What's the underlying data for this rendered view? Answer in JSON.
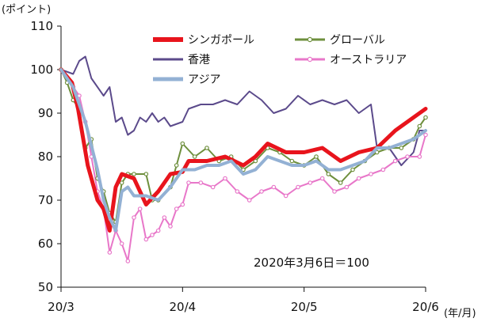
{
  "chart_data": {
    "type": "line",
    "y_unit_label": "(ポイント)",
    "x_unit_label": "(年/月)",
    "annotation": "2020年3月6日＝100",
    "ylim": [
      50,
      110
    ],
    "yticks": [
      50,
      60,
      70,
      80,
      90,
      100,
      110
    ],
    "xticks": [
      {
        "label": "20/3",
        "x": 0
      },
      {
        "label": "20/4",
        "x": 1
      },
      {
        "label": "20/5",
        "x": 2
      },
      {
        "label": "20/6",
        "x": 3
      }
    ],
    "xlim": [
      0,
      3
    ],
    "grid": false,
    "legend_position": "top",
    "series": [
      {
        "name": "シンガポール",
        "color": "#e8141c",
        "marker": "none",
        "width": 5,
        "points": [
          [
            0,
            100
          ],
          [
            0.09,
            97
          ],
          [
            0.14,
            91
          ],
          [
            0.22,
            78
          ],
          [
            0.3,
            70
          ],
          [
            0.35,
            68
          ],
          [
            0.4,
            63
          ],
          [
            0.45,
            73
          ],
          [
            0.5,
            76
          ],
          [
            0.6,
            75
          ],
          [
            0.7,
            69
          ],
          [
            0.8,
            72
          ],
          [
            0.9,
            76
          ],
          [
            1.0,
            76.5
          ],
          [
            1.05,
            79
          ],
          [
            1.2,
            79
          ],
          [
            1.35,
            80
          ],
          [
            1.5,
            78
          ],
          [
            1.6,
            80
          ],
          [
            1.7,
            83
          ],
          [
            1.85,
            81
          ],
          [
            2.0,
            81
          ],
          [
            2.15,
            82
          ],
          [
            2.3,
            79
          ],
          [
            2.45,
            81
          ],
          [
            2.6,
            82
          ],
          [
            2.75,
            86
          ],
          [
            2.85,
            88
          ],
          [
            2.95,
            90
          ],
          [
            3.0,
            91
          ]
        ]
      },
      {
        "name": "グローバル",
        "color": "#6e8f3d",
        "marker": "circle",
        "width": 2,
        "points": [
          [
            0,
            100
          ],
          [
            0.05,
            97
          ],
          [
            0.1,
            93
          ],
          [
            0.15,
            91
          ],
          [
            0.2,
            82
          ],
          [
            0.25,
            84
          ],
          [
            0.3,
            75
          ],
          [
            0.35,
            72
          ],
          [
            0.4,
            67
          ],
          [
            0.45,
            65
          ],
          [
            0.5,
            74
          ],
          [
            0.55,
            76
          ],
          [
            0.6,
            76
          ],
          [
            0.7,
            76
          ],
          [
            0.75,
            70
          ],
          [
            0.8,
            70
          ],
          [
            0.9,
            73
          ],
          [
            0.95,
            78
          ],
          [
            1.0,
            83
          ],
          [
            1.1,
            80
          ],
          [
            1.2,
            82
          ],
          [
            1.3,
            79
          ],
          [
            1.4,
            80
          ],
          [
            1.5,
            77
          ],
          [
            1.6,
            79
          ],
          [
            1.7,
            82
          ],
          [
            1.8,
            81
          ],
          [
            1.9,
            79
          ],
          [
            2.0,
            78
          ],
          [
            2.1,
            80
          ],
          [
            2.2,
            76
          ],
          [
            2.3,
            74
          ],
          [
            2.4,
            77
          ],
          [
            2.5,
            79
          ],
          [
            2.6,
            81
          ],
          [
            2.7,
            82
          ],
          [
            2.8,
            82
          ],
          [
            2.9,
            84
          ],
          [
            2.95,
            87
          ],
          [
            3.0,
            89
          ]
        ]
      },
      {
        "name": "香港",
        "color": "#5b4a8b",
        "marker": "none",
        "width": 2,
        "points": [
          [
            0,
            100
          ],
          [
            0.1,
            99
          ],
          [
            0.15,
            102
          ],
          [
            0.2,
            103
          ],
          [
            0.25,
            98
          ],
          [
            0.35,
            94
          ],
          [
            0.4,
            96
          ],
          [
            0.45,
            88
          ],
          [
            0.5,
            89
          ],
          [
            0.55,
            85
          ],
          [
            0.6,
            86
          ],
          [
            0.65,
            89
          ],
          [
            0.7,
            88
          ],
          [
            0.75,
            90
          ],
          [
            0.8,
            88
          ],
          [
            0.85,
            89
          ],
          [
            0.9,
            87
          ],
          [
            1.0,
            88
          ],
          [
            1.05,
            91
          ],
          [
            1.15,
            92
          ],
          [
            1.25,
            92
          ],
          [
            1.35,
            93
          ],
          [
            1.45,
            92
          ],
          [
            1.55,
            95
          ],
          [
            1.65,
            93
          ],
          [
            1.75,
            90
          ],
          [
            1.85,
            91
          ],
          [
            1.95,
            94
          ],
          [
            2.05,
            92
          ],
          [
            2.15,
            93
          ],
          [
            2.25,
            92
          ],
          [
            2.35,
            93
          ],
          [
            2.45,
            90
          ],
          [
            2.55,
            92
          ],
          [
            2.6,
            82
          ],
          [
            2.7,
            82
          ],
          [
            2.8,
            78
          ],
          [
            2.9,
            81
          ],
          [
            2.95,
            86
          ],
          [
            3.0,
            86
          ]
        ]
      },
      {
        "name": "オーストラリア",
        "color": "#e877c9",
        "marker": "circle",
        "width": 2,
        "points": [
          [
            0,
            100
          ],
          [
            0.1,
            96
          ],
          [
            0.15,
            94
          ],
          [
            0.2,
            88
          ],
          [
            0.25,
            80
          ],
          [
            0.3,
            72
          ],
          [
            0.35,
            68
          ],
          [
            0.4,
            58
          ],
          [
            0.45,
            63
          ],
          [
            0.5,
            60
          ],
          [
            0.55,
            56
          ],
          [
            0.6,
            66
          ],
          [
            0.65,
            68
          ],
          [
            0.7,
            61
          ],
          [
            0.75,
            62
          ],
          [
            0.8,
            63
          ],
          [
            0.85,
            66
          ],
          [
            0.9,
            64
          ],
          [
            0.95,
            68
          ],
          [
            1.0,
            69
          ],
          [
            1.05,
            74
          ],
          [
            1.15,
            74
          ],
          [
            1.25,
            73
          ],
          [
            1.35,
            75
          ],
          [
            1.45,
            72
          ],
          [
            1.55,
            70
          ],
          [
            1.65,
            72
          ],
          [
            1.75,
            73
          ],
          [
            1.85,
            71
          ],
          [
            1.95,
            73
          ],
          [
            2.05,
            74
          ],
          [
            2.15,
            75
          ],
          [
            2.25,
            72
          ],
          [
            2.35,
            73
          ],
          [
            2.45,
            75
          ],
          [
            2.55,
            76
          ],
          [
            2.65,
            77
          ],
          [
            2.75,
            79
          ],
          [
            2.85,
            80
          ],
          [
            2.95,
            80
          ],
          [
            3.0,
            85
          ]
        ]
      },
      {
        "name": "アジア",
        "color": "#93b1d4",
        "marker": "none",
        "width": 4,
        "points": [
          [
            0,
            100
          ],
          [
            0.1,
            96
          ],
          [
            0.2,
            88
          ],
          [
            0.3,
            77
          ],
          [
            0.35,
            70
          ],
          [
            0.4,
            66
          ],
          [
            0.45,
            63
          ],
          [
            0.5,
            72
          ],
          [
            0.55,
            73
          ],
          [
            0.6,
            71
          ],
          [
            0.7,
            71
          ],
          [
            0.8,
            70
          ],
          [
            0.9,
            73
          ],
          [
            1.0,
            77
          ],
          [
            1.1,
            77
          ],
          [
            1.2,
            78
          ],
          [
            1.3,
            78
          ],
          [
            1.4,
            79
          ],
          [
            1.5,
            76
          ],
          [
            1.6,
            77
          ],
          [
            1.7,
            80
          ],
          [
            1.8,
            79
          ],
          [
            1.9,
            78
          ],
          [
            2.0,
            78
          ],
          [
            2.1,
            79
          ],
          [
            2.2,
            77
          ],
          [
            2.3,
            77
          ],
          [
            2.4,
            78
          ],
          [
            2.5,
            79
          ],
          [
            2.6,
            82
          ],
          [
            2.7,
            82
          ],
          [
            2.8,
            83
          ],
          [
            2.9,
            84
          ],
          [
            3.0,
            86
          ]
        ]
      }
    ]
  }
}
